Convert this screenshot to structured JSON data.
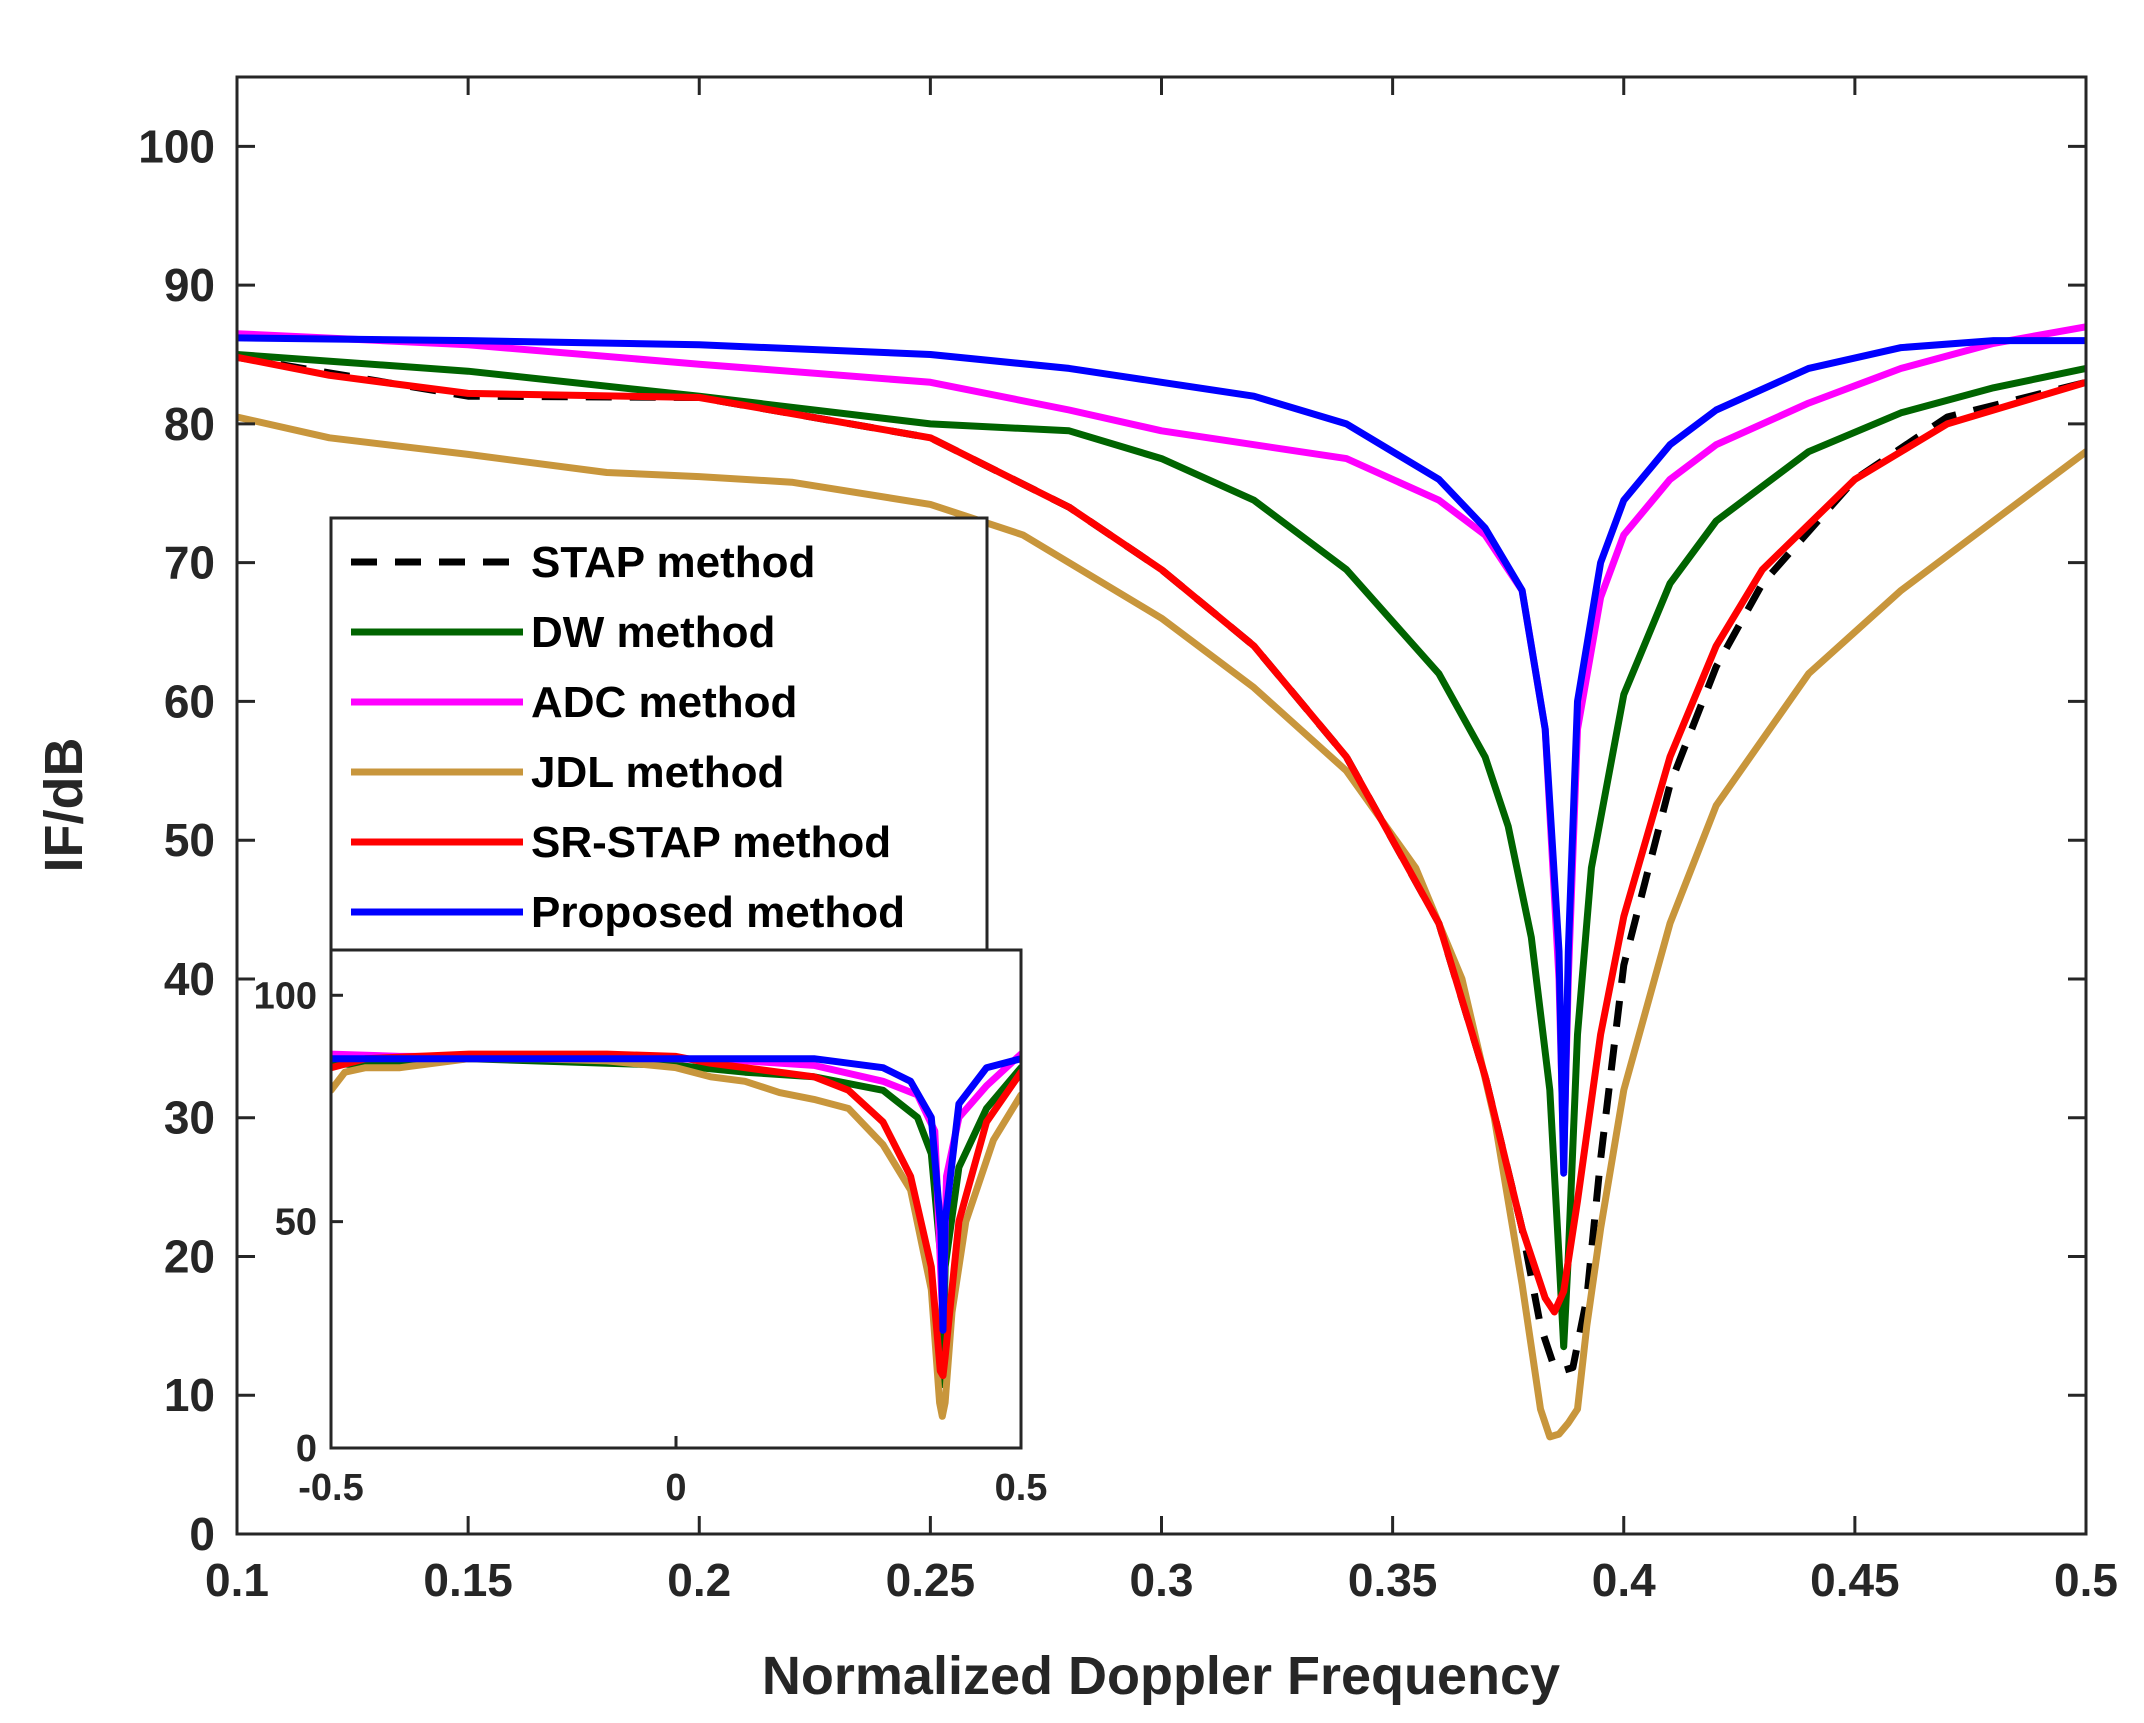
{
  "chart_data": [
    {
      "type": "line",
      "title": "",
      "xlabel": "Normalized Doppler Frequency",
      "ylabel": "IF/dB",
      "xlim": [
        0.1,
        0.5
      ],
      "ylim": [
        0,
        105
      ],
      "xticks": [
        0.1,
        0.15,
        0.2,
        0.25,
        0.3,
        0.35,
        0.4,
        0.45,
        0.5
      ],
      "xtick_labels": [
        "0.1",
        "0.15",
        "0.2",
        "0.25",
        "0.3",
        "0.35",
        "0.4",
        "0.45",
        "0.5"
      ],
      "yticks": [
        0,
        10,
        20,
        30,
        40,
        50,
        60,
        70,
        80,
        90,
        100
      ],
      "ytick_labels": [
        "0",
        "10",
        "20",
        "30",
        "40",
        "50",
        "60",
        "70",
        "80",
        "90",
        "100"
      ],
      "legend_position": "center-left",
      "grid": false,
      "series": [
        {
          "name": "STAP method",
          "color": "#000000",
          "style": "dashed",
          "points": [
            [
              0.1,
              84.8
            ],
            [
              0.15,
              82.0
            ],
            [
              0.2,
              81.9
            ],
            [
              0.25,
              79.0
            ],
            [
              0.28,
              74.0
            ],
            [
              0.3,
              69.5
            ],
            [
              0.32,
              64.0
            ],
            [
              0.34,
              56.0
            ],
            [
              0.36,
              44.0
            ],
            [
              0.37,
              33.0
            ],
            [
              0.378,
              22.0
            ],
            [
              0.382,
              15.0
            ],
            [
              0.385,
              12.0
            ],
            [
              0.387,
              11.8
            ],
            [
              0.389,
              12.0
            ],
            [
              0.392,
              17.0
            ],
            [
              0.395,
              27.0
            ],
            [
              0.4,
              41.0
            ],
            [
              0.41,
              54.0
            ],
            [
              0.42,
              62.5
            ],
            [
              0.43,
              68.5
            ],
            [
              0.45,
              76.0
            ],
            [
              0.47,
              80.5
            ],
            [
              0.5,
              83.0
            ]
          ]
        },
        {
          "name": "DW method",
          "color": "#006400",
          "style": "solid",
          "points": [
            [
              0.1,
              85.0
            ],
            [
              0.15,
              83.8
            ],
            [
              0.2,
              82.0
            ],
            [
              0.25,
              80.0
            ],
            [
              0.28,
              79.5
            ],
            [
              0.3,
              77.5
            ],
            [
              0.32,
              74.5
            ],
            [
              0.34,
              69.5
            ],
            [
              0.36,
              62.0
            ],
            [
              0.37,
              56.0
            ],
            [
              0.375,
              51.0
            ],
            [
              0.38,
              43.0
            ],
            [
              0.384,
              32.0
            ],
            [
              0.386,
              20.0
            ],
            [
              0.387,
              13.5
            ],
            [
              0.388,
              20.0
            ],
            [
              0.39,
              36.0
            ],
            [
              0.393,
              48.0
            ],
            [
              0.4,
              60.5
            ],
            [
              0.41,
              68.5
            ],
            [
              0.42,
              73.0
            ],
            [
              0.44,
              78.0
            ],
            [
              0.46,
              80.8
            ],
            [
              0.48,
              82.6
            ],
            [
              0.5,
              84.0
            ]
          ]
        },
        {
          "name": "ADC method",
          "color": "#FF00FF",
          "style": "solid",
          "points": [
            [
              0.1,
              86.5
            ],
            [
              0.15,
              85.7
            ],
            [
              0.2,
              84.3
            ],
            [
              0.25,
              83.0
            ],
            [
              0.28,
              81.0
            ],
            [
              0.3,
              79.5
            ],
            [
              0.32,
              78.5
            ],
            [
              0.34,
              77.5
            ],
            [
              0.36,
              74.5
            ],
            [
              0.37,
              72.0
            ],
            [
              0.378,
              68.0
            ],
            [
              0.383,
              58.0
            ],
            [
              0.386,
              40.0
            ],
            [
              0.387,
              27.0
            ],
            [
              0.388,
              40.0
            ],
            [
              0.39,
              58.0
            ],
            [
              0.395,
              67.5
            ],
            [
              0.4,
              72.0
            ],
            [
              0.41,
              76.0
            ],
            [
              0.42,
              78.5
            ],
            [
              0.44,
              81.5
            ],
            [
              0.46,
              84.0
            ],
            [
              0.48,
              85.8
            ],
            [
              0.5,
              87.0
            ]
          ]
        },
        {
          "name": "JDL method",
          "color": "#C8963C",
          "style": "solid",
          "points": [
            [
              0.1,
              80.5
            ],
            [
              0.12,
              79.0
            ],
            [
              0.15,
              77.8
            ],
            [
              0.18,
              76.5
            ],
            [
              0.2,
              76.2
            ],
            [
              0.22,
              75.8
            ],
            [
              0.25,
              74.2
            ],
            [
              0.27,
              72.0
            ],
            [
              0.3,
              66.0
            ],
            [
              0.32,
              61.0
            ],
            [
              0.34,
              55.0
            ],
            [
              0.355,
              48.0
            ],
            [
              0.365,
              40.0
            ],
            [
              0.372,
              30.0
            ],
            [
              0.378,
              18.0
            ],
            [
              0.382,
              9.0
            ],
            [
              0.384,
              7.0
            ],
            [
              0.386,
              7.2
            ],
            [
              0.388,
              8.0
            ],
            [
              0.39,
              9.0
            ],
            [
              0.392,
              15.0
            ],
            [
              0.395,
              22.0
            ],
            [
              0.4,
              32.0
            ],
            [
              0.41,
              44.0
            ],
            [
              0.42,
              52.5
            ],
            [
              0.44,
              62.0
            ],
            [
              0.46,
              68.0
            ],
            [
              0.48,
              73.0
            ],
            [
              0.5,
              78.0
            ]
          ]
        },
        {
          "name": "SR-STAP method",
          "color": "#FF0000",
          "style": "solid",
          "points": [
            [
              0.1,
              84.8
            ],
            [
              0.12,
              83.5
            ],
            [
              0.15,
              82.2
            ],
            [
              0.2,
              81.9
            ],
            [
              0.25,
              79.0
            ],
            [
              0.28,
              74.0
            ],
            [
              0.3,
              69.5
            ],
            [
              0.32,
              64.0
            ],
            [
              0.34,
              56.0
            ],
            [
              0.36,
              44.0
            ],
            [
              0.37,
              33.0
            ],
            [
              0.378,
              22.0
            ],
            [
              0.383,
              17.0
            ],
            [
              0.385,
              16.0
            ],
            [
              0.387,
              17.5
            ],
            [
              0.39,
              24.0
            ],
            [
              0.395,
              36.0
            ],
            [
              0.4,
              44.5
            ],
            [
              0.41,
              56.0
            ],
            [
              0.42,
              64.0
            ],
            [
              0.43,
              69.5
            ],
            [
              0.45,
              76.0
            ],
            [
              0.47,
              80.0
            ],
            [
              0.5,
              83.0
            ]
          ]
        },
        {
          "name": "Proposed method",
          "color": "#0000FF",
          "style": "solid",
          "points": [
            [
              0.1,
              86.2
            ],
            [
              0.15,
              86.0
            ],
            [
              0.2,
              85.7
            ],
            [
              0.25,
              85.0
            ],
            [
              0.28,
              84.0
            ],
            [
              0.3,
              83.0
            ],
            [
              0.32,
              82.0
            ],
            [
              0.34,
              80.0
            ],
            [
              0.36,
              76.0
            ],
            [
              0.37,
              72.5
            ],
            [
              0.378,
              68.0
            ],
            [
              0.383,
              58.0
            ],
            [
              0.386,
              42.0
            ],
            [
              0.387,
              26.0
            ],
            [
              0.388,
              42.0
            ],
            [
              0.39,
              60.0
            ],
            [
              0.395,
              70.0
            ],
            [
              0.4,
              74.5
            ],
            [
              0.41,
              78.5
            ],
            [
              0.42,
              81.0
            ],
            [
              0.44,
              84.0
            ],
            [
              0.46,
              85.5
            ],
            [
              0.48,
              86.0
            ],
            [
              0.5,
              86.0
            ]
          ]
        }
      ]
    },
    {
      "type": "line",
      "title": "",
      "xlabel": "",
      "ylabel": "",
      "xlim": [
        -0.5,
        0.5
      ],
      "ylim": [
        0,
        110
      ],
      "xticks": [
        -0.5,
        0,
        0.5
      ],
      "xtick_labels": [
        "-0.5",
        "0",
        "0.5"
      ],
      "yticks": [
        0,
        50,
        100
      ],
      "ytick_labels": [
        "0",
        "50",
        "100"
      ],
      "series": [
        {
          "name": "DW method",
          "color": "#006400",
          "points": [
            [
              -0.5,
              85
            ],
            [
              -0.45,
              84.5
            ],
            [
              -0.3,
              86.0
            ],
            [
              -0.1,
              85.0
            ],
            [
              0.0,
              84.5
            ],
            [
              0.1,
              83.0
            ],
            [
              0.2,
              82.0
            ],
            [
              0.3,
              79.0
            ],
            [
              0.35,
              73.0
            ],
            [
              0.37,
              65.0
            ],
            [
              0.385,
              40.0
            ],
            [
              0.387,
              14.0
            ],
            [
              0.39,
              40.0
            ],
            [
              0.41,
              62.0
            ],
            [
              0.45,
              75.0
            ],
            [
              0.5,
              84.0
            ]
          ]
        },
        {
          "name": "ADC method",
          "color": "#FF00FF",
          "points": [
            [
              -0.5,
              87
            ],
            [
              -0.4,
              86.5
            ],
            [
              -0.2,
              86.5
            ],
            [
              0.0,
              86.0
            ],
            [
              0.1,
              85.5
            ],
            [
              0.2,
              84.5
            ],
            [
              0.3,
              81.0
            ],
            [
              0.35,
              78.0
            ],
            [
              0.375,
              70.0
            ],
            [
              0.387,
              27.0
            ],
            [
              0.392,
              60.0
            ],
            [
              0.41,
              73.0
            ],
            [
              0.45,
              80.0
            ],
            [
              0.5,
              87.0
            ]
          ]
        },
        {
          "name": "JDL method",
          "color": "#C8963C",
          "points": [
            [
              -0.5,
              79
            ],
            [
              -0.48,
              83.0
            ],
            [
              -0.45,
              84.0
            ],
            [
              -0.4,
              84.0
            ],
            [
              -0.3,
              86.0
            ],
            [
              -0.2,
              86.0
            ],
            [
              -0.1,
              85.5
            ],
            [
              0.0,
              84.0
            ],
            [
              0.05,
              82.0
            ],
            [
              0.1,
              81.0
            ],
            [
              0.15,
              78.5
            ],
            [
              0.2,
              77.0
            ],
            [
              0.25,
              75.0
            ],
            [
              0.3,
              67.0
            ],
            [
              0.34,
              57.0
            ],
            [
              0.37,
              35.0
            ],
            [
              0.382,
              10.0
            ],
            [
              0.386,
              7.0
            ],
            [
              0.39,
              10.0
            ],
            [
              0.4,
              30.0
            ],
            [
              0.42,
              50.0
            ],
            [
              0.46,
              68.0
            ],
            [
              0.5,
              78.0
            ]
          ]
        },
        {
          "name": "SR-STAP method",
          "color": "#FF0000",
          "points": [
            [
              -0.5,
              84
            ],
            [
              -0.45,
              86.0
            ],
            [
              -0.3,
              87.0
            ],
            [
              -0.1,
              87.0
            ],
            [
              0.0,
              86.5
            ],
            [
              0.05,
              85.0
            ],
            [
              0.1,
              84.0
            ],
            [
              0.2,
              82.0
            ],
            [
              0.25,
              79.0
            ],
            [
              0.3,
              72.0
            ],
            [
              0.34,
              60.0
            ],
            [
              0.37,
              40.0
            ],
            [
              0.383,
              17.0
            ],
            [
              0.387,
              16.0
            ],
            [
              0.39,
              20.0
            ],
            [
              0.41,
              50.0
            ],
            [
              0.45,
              72.0
            ],
            [
              0.5,
              83.0
            ]
          ]
        },
        {
          "name": "Proposed method",
          "color": "#0000FF",
          "points": [
            [
              -0.5,
              86
            ],
            [
              -0.4,
              86.0
            ],
            [
              -0.2,
              86.0
            ],
            [
              0.0,
              86.0
            ],
            [
              0.1,
              86.0
            ],
            [
              0.2,
              86.0
            ],
            [
              0.3,
              84.0
            ],
            [
              0.34,
              81.0
            ],
            [
              0.37,
              73.0
            ],
            [
              0.384,
              48.0
            ],
            [
              0.387,
              26.0
            ],
            [
              0.39,
              50.0
            ],
            [
              0.41,
              76.0
            ],
            [
              0.45,
              84.0
            ],
            [
              0.5,
              86.0
            ]
          ]
        }
      ]
    }
  ]
}
